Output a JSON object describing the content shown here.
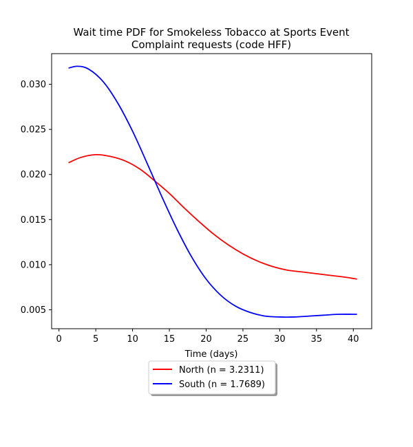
{
  "chart_data": {
    "type": "line",
    "title_line1": "Wait time PDF for Smokeless Tobacco at Sports Event",
    "title_line2": "Complaint  requests (code HFF)",
    "xlabel": "Time (days)",
    "ylabel": "",
    "xlim": [
      -1,
      42.5
    ],
    "ylim": [
      0.0029,
      0.0334
    ],
    "xticks": [
      0,
      5,
      10,
      15,
      20,
      25,
      30,
      35,
      40
    ],
    "yticks": [
      0.005,
      0.01,
      0.015,
      0.02,
      0.025,
      0.03
    ],
    "ytick_labels": [
      "0.005",
      "0.010",
      "0.015",
      "0.020",
      "0.025",
      "0.030"
    ],
    "grid": false,
    "legend_placement": "bottom-center",
    "series": [
      {
        "name": "North (n = 3.2311)",
        "color": "#ff0000",
        "x": [
          1.3,
          3,
          5,
          7,
          9,
          11,
          13,
          15,
          17,
          19,
          21,
          23,
          25,
          27,
          29,
          31,
          33,
          35,
          37,
          39,
          40.5
        ],
        "y": [
          0.0213,
          0.0219,
          0.0222,
          0.022,
          0.0215,
          0.0206,
          0.0193,
          0.0179,
          0.0163,
          0.0148,
          0.0134,
          0.0122,
          0.0112,
          0.0104,
          0.0098,
          0.0094,
          0.0092,
          0.009,
          0.0088,
          0.0086,
          0.0084
        ]
      },
      {
        "name": "South (n = 1.7689)",
        "color": "#0000ff",
        "x": [
          1.3,
          2.5,
          4,
          6,
          8,
          10,
          12,
          14,
          16,
          18,
          20,
          22,
          24,
          26,
          28,
          30,
          32,
          34,
          36,
          38,
          40.5
        ],
        "y": [
          0.0318,
          0.032,
          0.0317,
          0.0303,
          0.0279,
          0.0248,
          0.0212,
          0.0175,
          0.014,
          0.0109,
          0.0084,
          0.0066,
          0.0054,
          0.0047,
          0.0043,
          0.0042,
          0.0042,
          0.0043,
          0.0044,
          0.0045,
          0.0045
        ]
      }
    ]
  }
}
